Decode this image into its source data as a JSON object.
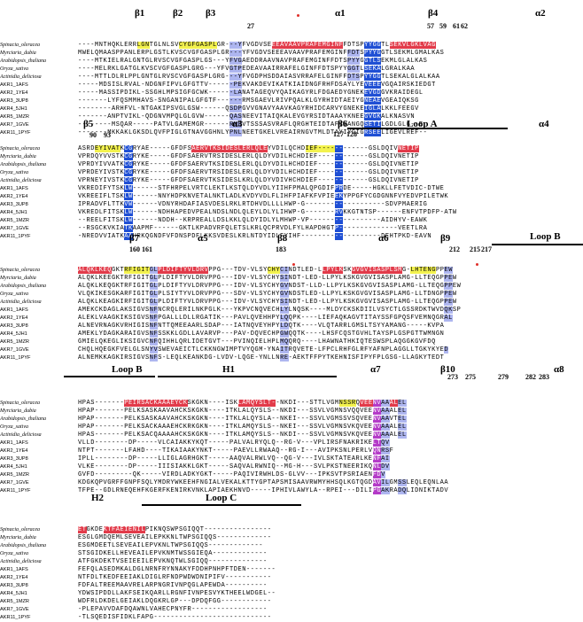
{
  "colors": {
    "helix": "#e23b4a",
    "strand": "#f3f24e",
    "conserved": "#1f4fd4",
    "similar": "#aeb6f0",
    "magenta": "#b43bc8",
    "marker": "#e0302a"
  },
  "blocks": [
    {
      "headers": [
        "β1",
        "β2",
        "β3",
        "27",
        "α1",
        "β4",
        "57",
        "59",
        "61",
        "62",
        "α2"
      ],
      "rows": [
        {
          "name": "Spinacia_oleracea",
          "seq": "----MNTHQKLERRLGNTGLNLSVCYGFGASPLGR---YFVGDVSEEEAVAAVPRAFEMGINFFDTSPYYGGTLSEKVLGKLVAG"
        },
        {
          "name": "Myrciaria_dubia",
          "seq": "MWELQMAASPPANLERPLGSTLKVSCVGFGASPLGR---YFVGDVSEEEAVAAVPRAFEMGINFFDTSPYYGGTLSEKMLGMALKAS"
        },
        {
          "name": "Arabidopsis_thaliana",
          "seq": "----MTKIELRALGNTGLRVSCVGFGASPLGS---YFVGAEDDRAAVNAVPRAFEMGINFFDTSPYYGGTLSEKMLGLALKAS"
        },
        {
          "name": "Oryza_sativa",
          "seq": "----MELRKLGATGLKVSCVGFGASPLGRG---YFVGTPEDEAVAAIRRAFELGINFFDTSPYYGGTLSEKALGRALKAA"
        },
        {
          "name": "Actinidia_deliciosa",
          "seq": "----MTTLDLRLPPLGNTGLRVSCVGFGASPLGRG---YFVGDPHSDDAIASVRRAFELGINFFDTSPYYGGTLSEKALGLALKAA"
        },
        {
          "name": "AKR1_1AFS",
          "seq": "-----MDSISLRVAL-NDGNFIPVLGFGTTV------PEKVAKDEVIKATKIAIDNGFRHFDSAYLYEVEEEVGQAIRSKIEDGT"
        },
        {
          "name": "AKR2_1YE4",
          "seq": "-----MASSIPDIKL-SSGHLMPSIGFGCWK------LANATAGEQVYQAIKAGYRLFDGAEDYGNEKEVGDGVKRAIDEGL"
        },
        {
          "name": "AKR3_3UP8",
          "seq": "-------LYFQSMMHAVS-SNGANIPALGFGTF------RMSGAEVLRIVPQALKLGYRHIDTAEIYGNEAEVGEAIQKSG"
        },
        {
          "name": "AKR4_5JH1",
          "seq": "--------ARHFVL-NTGAKIPSVGLGSW------QSDPGVVGNAVYAAVKAGYRHIDCARVYGNEKEIGLALKKLFEEGV"
        },
        {
          "name": "AKR5_1MZR",
          "seq": "-------ANPTVIKL-QDGNVMPQLGLGVW------QASNEEVITAIQKALEVGYRSIDTAAAYKNEEGVGKALKNASVN"
        },
        {
          "name": "AKR7_1GVE",
          "seq": "--------MSQAR-----PATVLGAMEMGR------RMDVTSSSASVRAFLQRGHTEIDTAFVYANGQSETILGDLGLG--E"
        },
        {
          "name": "AKR11_1PYF",
          "seq": "-------MKKAKLGKSDLQVFPIGLGTNAVGGHNLYPNLNEETGKELVREAIRNGVTMLDTAYIYGIGRSEELIGEVLREF--"
        }
      ]
    },
    {
      "headers": [
        "β5",
        "90",
        "93",
        "α3",
        "β6",
        "127",
        "128",
        "Loop A",
        "α4"
      ],
      "rows": [
        {
          "name": "Spinacia_oleracea",
          "seq": "ASRDEYIVATKCGRYAE-----GFDFSAERVTKSIDESLERLQLEYVDILQCHDIEF------------GSLDQIVNETIP"
        },
        {
          "name": "Myrciaria_dubia",
          "seq": "VPRDQYVVSTKCGRYKE-----GFDFSAERVTRSIDESLERLQLDYVDILHCHDIEF------------GSLDQIVNETIP"
        },
        {
          "name": "Arabidopsis_thaliana",
          "seq": "VPRDYIVVATKCGRYKE-----GFDFSAERVTKSIDESLERLQLDYVDILHCHDIEF------------GSLDQIVNETIP"
        },
        {
          "name": "Oryza_sativa",
          "seq": "VPRDEYIVSTKCGRYKE-----GFDFSAERVTRSIDESLERLQLDYVDILHCHDIEF------------GSLDQIVNETIP"
        },
        {
          "name": "Actinidia_deliciosa",
          "seq": "VPRNEYIVSTKCGRYKE-----GFDFSAERVTKSIDESLKRLQLDYVDIVHCHDIEF------------GSLDQIVNETIP"
        },
        {
          "name": "AKR1_1AFS",
          "seq": "VKREDIFYTSKLW------STFHRPELVRTCLEKTLKSTQLDYVDLYIIHFPMALQPGDIFPRDE-----HGKLLFETVDIC-DTWE"
        },
        {
          "name": "AKR2_1YE4",
          "seq": "VKREEIFLTSKLW------NNYHDPKNVETALNKTLADLKVDYVDLFLIHFPIAFKFVPIEEKYPPGFYCGDGNNFVYEDVPILETWK"
        },
        {
          "name": "AKR3_3UP8",
          "seq": "IPRADVFLTTKVW------VDNYRHDAFIASVDESLRKLRTDHVDLLLLHWP-G-------------------SDVPMAERIG"
        },
        {
          "name": "AKR4_5JH1",
          "seq": "VKREDLFITSKLW------NDHHAPEDVPEALNDSLNDLQLEYLDLYLIHWP-G-------RVKKGTNTSP------ENFVTPDFP-ATW"
        },
        {
          "name": "AKR5_1MZR",
          "seq": "--REELFITSKLW------NDDH--KRPREALLDSLKKLQLDYIDLYLMHWP-VP-----------------AIDHYV-EAWK"
        },
        {
          "name": "AKR7_1GVE",
          "seq": "--RSGCKVKIATKAAPMF------GKTLKPADVRFQLETSLKRLQCPRVDLFYLHAPDHGTP--------------VEETLRA"
        },
        {
          "name": "AKR11_1PYF",
          "seq": "-NREDVVIATKAAHRKQGNDFVFDNSPDFLKKSVDESLKRLNTDYIDLFYIHF-------------------DEHTPKD-EAVN"
        }
      ]
    },
    {
      "headers": [
        "β7",
        "160",
        "161",
        "α5",
        "β8",
        "183",
        "α6",
        "β9",
        "212",
        "215",
        "217",
        "Loop B"
      ],
      "rows": [
        {
          "name": "Spinacia_oleracea",
          "seq": "ALQKLKEQGKTRFIGITGLPLDIFTYVLDRVPPG---TDV-VLSYCHYCINDTLED-LLPYLKSKGVGVISASPLSMG-LHTENGPPEW"
        },
        {
          "name": "Myrciaria_dubia",
          "seq": "ALQKLKEEGKTRFIGITGLPLDIFTYVLDRVPPG---IDV-VLSYCHYSINDT-LED-LLPYLKSKGVGVISASPLAMG-LLTEQGPPEW"
        },
        {
          "name": "Arabidopsis_thaliana",
          "seq": "ALQKLKEQGKTRFIGITGLPLDIFTYVLDRVPPG---IDV-VLSYCHYGVNDST-LLD-LLPYLKSKGVGVISASPLAMG-LLTEQGPPEW"
        },
        {
          "name": "Oryza_sativa",
          "seq": "VLQKIKESGKARFIGITGLPLSIYTYVLDRVPPG---SDV-VLSYCHYGVNDSTLED-LLPYLKSKGVGVISASPLAMG-LLTDNGPPEW"
        },
        {
          "name": "Actinidia_deliciosa",
          "seq": "ALQKLKEAGKIRFIGITGLPLDIFTYVLDRVPPG---IDV-VLSYCHYSINDT-LED-LLPYLKSKGVGVISASPLAMG-LLTEQGPPEW"
        },
        {
          "name": "AKR1_1AFS",
          "seq": "AMEKCKDAGLAKSIGVSNFNCRQLERILNKPGLK---YKPVCNQVECHLYLNQSK----MLDYCKSKDIILVSYCTLGSSRDKTWVDQKSP"
        },
        {
          "name": "AKR2_1YE4",
          "seq": "ALEKLVAAGKIKSIGVSNFPGALLLDLLRGATIK---PAVLQVEHHPYLQQPK----LIEFAQKAGVTITAYSSFGPQSFVEMNQGRAL"
        },
        {
          "name": "AKR3_3UP8",
          "seq": "ALNEVRNAGKVRHIGISNFNTTQMEEAARLSDAP---IATNQVEYHPYLDQTK----VLQTARRLGMSLTSYYAMANG-----KVPA"
        },
        {
          "name": "AKR4_5JH1",
          "seq": "AMEKLYDAGKARAIGVSNFSSKKLGDLLAVARVP---PAV-DQVECHPGWQQTK----LHSFCQSTGVHLTAYSPLGSPGTTWMNGN"
        },
        {
          "name": "AKR5_1MZR",
          "seq": "GMIELQKEGLIKSIGVCNFQIHHLQRLIDETGVT---PVINQIELHPLMQQRQ----LHAWNATHKIQTESWSPLAQGGKGVFDQ"
        },
        {
          "name": "AKR7_1GVE",
          "seq": "CHQLHQEGKFVELGLSNYVSWEVAEICTLCKKNGWIMPTVYQGM-YNAITRQVETE-LFPCLRHFGLRFYAFNPLAGGLLTGKYKYED"
        },
        {
          "name": "AKR11_1PYF",
          "seq": "ALNEMKKAGKIRSIGVSNFS-LEQLKEANKDG-LVDV-LQGE-YNLLNRE-AEKTFFPYTKEHNISFIPYFPLGSG-LLAGKYTEDT"
        }
      ]
    },
    {
      "headers": [
        "Loop B",
        "H1",
        "α7",
        "β10",
        "273",
        "275",
        "279",
        "282",
        "283",
        "α8"
      ],
      "rows": [
        {
          "name": "Spinacia_oleracea",
          "seq": "HPAS-------PEIRSACKAAAEYCKSKGKN----ISKLAMQYSLT--NKDI---STTLVGMNSSRQVEENVAAALEL"
        },
        {
          "name": "Myrciaria_dubia",
          "seq": "HPAP-------PELKSASKAAVAHCKSKGKN----ITKLALQYSLS--NKDI---SSVLVGMNSVQQVEENVAAALEL"
        },
        {
          "name": "Arabidopsis_thaliana",
          "seq": "HPAP-------PELKSASKAAVAHCKSKGKN----ITKLALQYSLA--NKEI---SSVLVGMSSVSQVEENVAAVTEL"
        },
        {
          "name": "Oryza_sativa",
          "seq": "HPAP-------PELKSACKAAAEHCKRKGKN----ITKLAMQYSLS--NKEI---SSVLVGMNSVKQVEENVAAALEL"
        },
        {
          "name": "Actinidia_deliciosa",
          "seq": "HPAS-------PELKSACQAAAAHCKSKGKN----ITKLAMQYSLS--NKDI---SSVLVGMNSVKQVEENVAAALEL"
        },
        {
          "name": "AKR1_1AFS",
          "seq": "VLLD--------DP-----VLCAIAKKYKQT-----PALVALRYQLQ--RG-V---VPLIRSFNAKRIKELTQV"
        },
        {
          "name": "AKR2_1YE4",
          "seq": "NTPT-------LFAHD----TIKAIAAKYNKT-----PAEVLLRWAAQ--RG-I---AVIPKSNLPERLVQNRSF"
        },
        {
          "name": "AKR3_3UP8",
          "seq": "IPLL--------DP-----LLIGLAGRHGKT-----AAQVALRWLVQ--QG-V---IVLSKTATEARLKENFAI"
        },
        {
          "name": "AKR4_5JH1",
          "seq": "VLKE--------DP-----IIISIAKKLGKT-----SAQVALRWNIQ--MG-H---SVLPKSTNEERIKQNLDV"
        },
        {
          "name": "AKR5_1MZR",
          "seq": "GVFD---------QK-----VIRDLADKYGKT-----PAQIVIRWHLDS-GLVV---IPKSVTPSRIAENFDV"
        },
        {
          "name": "AKR7_1GVE",
          "seq": "KDGKQPVGRFFGNPFSQLYMDRYWKEEHFNGIALVEKALKTTYGPTAPSMISAAVRWMYHHSQLKGTQGDAVILGMSSLEQLEQNLAA"
        },
        {
          "name": "AKR11_1PYF",
          "seq": "TFPE--GDLRNEQEHFKGERFKENIRKVNKLAPIAEKHNVD-----IPHIVLAWYLA--RPEI---DILIPGAKRADQLIDNIKTADV"
        }
      ]
    },
    {
      "headers": [
        "H2",
        "Loop C"
      ],
      "rows": [
        {
          "name": "Spinacia_oleracea",
          "seq": "ETGKDEKTFAEIENILPIKNQSWPSGIQQT----------------"
        },
        {
          "name": "Myrciaria_dubia",
          "seq": "ESGLGMDQEMLSEVEAILEPKKNLTWPSGIQQS-------------"
        },
        {
          "name": "Arabidopsis_thaliana",
          "seq": "ESGMDEETLSEVEAILEPVKNLTWPSGIQQS-------------"
        },
        {
          "name": "Oryza_sativa",
          "seq": "STSGIDKELLHEVEAILEPVKNMTWSSGIEQA-------------"
        },
        {
          "name": "Actinidia_deliciosa",
          "seq": "ATFGKDEKTVSEIEEILEPVKNQTWLSGIQQ--------------"
        },
        {
          "name": "AKR1_1AFS",
          "seq": "FEFQLASEDMKALDGLNRNFRYNNAKYFDDHPNHPFTDEN-------"
        },
        {
          "name": "AKR2_1YE4",
          "seq": "NTFDLTKEDFEEIAKLDIGLRFNDPWDWDNIPIFV-----------"
        },
        {
          "name": "AKR3_3UP8",
          "seq": "FDFALTREEMAAVRELARPNGRIVNPQGLAPEWDA----------"
        },
        {
          "name": "AKR4_5JH1",
          "seq": "YDWSIPDDLLAKFSEIKQARLLRGNFIVNPESVYKTHEELWDGEL--"
        },
        {
          "name": "AKR5_1MZR",
          "seq": "WDFRLDKDELGEIAKLDQGKRLGP---DPDQFGG------------"
        },
        {
          "name": "AKR7_1GVE",
          "seq": "-PLEPAVVDAFDQAWNLVAHECPNYFR------------------"
        },
        {
          "name": "AKR11_1PYF",
          "seq": "-TLSQEDISFIDKLFAPG----------------------------"
        }
      ]
    }
  ]
}
